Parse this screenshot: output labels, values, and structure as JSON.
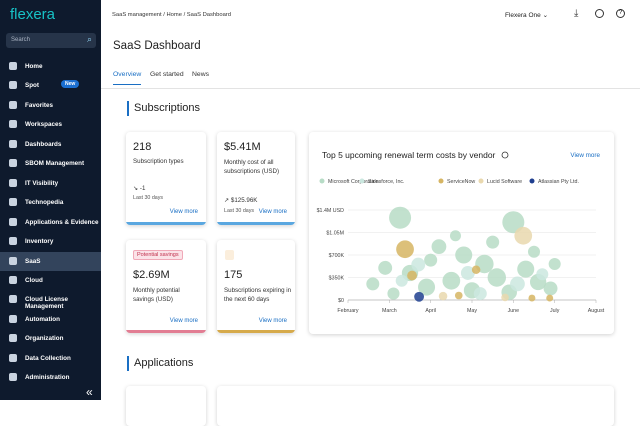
{
  "sidebar": {
    "logo": "flexera",
    "search": "Search",
    "badge": "New",
    "collapse": "«",
    "items": [
      "Home",
      "Spot",
      "Favorites",
      "Workspaces",
      "Dashboards",
      "SBOM Management",
      "IT Visibility",
      "Technopedia",
      "Applications & Evidence",
      "Inventory",
      "SaaS",
      "Cloud",
      "Cloud License Management",
      "Automation",
      "Organization",
      "Data Collection",
      "Administration"
    ],
    "selected": "SaaS"
  },
  "topbar": {
    "breadcrumb": [
      "SaaS management",
      "Home",
      "SaaS Dashboard"
    ],
    "org": "Flexera One"
  },
  "header": {
    "title": "SaaS Dashboard",
    "tabs": [
      "Overview",
      "Get started",
      "News"
    ],
    "active_tab": "Overview"
  },
  "sections": [
    "Subscriptions",
    "Applications"
  ],
  "cards": [
    {
      "value": "218",
      "label": "Subscription types",
      "change": "-1",
      "period": "Last 30 days",
      "link": "View more",
      "color": "#5aa7e0"
    },
    {
      "value": "$5.41M",
      "label": "Monthly cost of all subscriptions (USD)",
      "change": "$125.96K",
      "period": "Last 30 days",
      "link": "View more",
      "color": "#5aa7e0"
    },
    {
      "badge": "Potential savings",
      "value": "$2.69M",
      "label": "Monthly potential savings (USD)",
      "link": "View more",
      "color": "#e27d93"
    },
    {
      "value": "175",
      "label": "Subscriptions expiring in the next 60 days",
      "link": "View more",
      "color": "#d6aa4b"
    }
  ],
  "chart": {
    "type": "bubble",
    "title": "Top 5 upcoming renewal term costs by vendor",
    "link": "View more",
    "xlim": [
      0,
      6
    ],
    "xticks": [
      {
        "value": 0,
        "label": "February"
      },
      {
        "value": 1,
        "label": "March"
      },
      {
        "value": 2,
        "label": "April"
      },
      {
        "value": 3,
        "label": "May"
      },
      {
        "value": 4,
        "label": "June"
      },
      {
        "value": 5,
        "label": "July"
      },
      {
        "value": 6,
        "label": "August"
      }
    ],
    "ylim": [
      0,
      1400000
    ],
    "yticks": [
      {
        "value": 0,
        "label": "$0"
      },
      {
        "value": 350000,
        "label": "$350K"
      },
      {
        "value": 700000,
        "label": "$700K"
      },
      {
        "value": 1050000,
        "label": "$1.05M"
      },
      {
        "value": 1400000,
        "label": "$1.4M USD"
      }
    ],
    "grid": true,
    "series": [
      {
        "name": "Microsoft Corporation",
        "color": "#b7dcc6",
        "x": [
          1.26,
          4.0,
          2.2,
          2.8,
          3.3,
          1.5,
          2.5,
          3.6,
          4.3,
          4.6,
          0.9,
          0.6,
          1.9,
          3.0,
          3.9,
          4.9,
          5.0,
          2.0,
          1.1,
          3.5,
          4.5,
          2.6
        ],
        "values": [
          1280000,
          1210000,
          830000,
          700000,
          560000,
          420000,
          300000,
          350000,
          480000,
          280000,
          500000,
          250000,
          200000,
          150000,
          120000,
          180000,
          560000,
          620000,
          100000,
          900000,
          750000,
          1000000
        ],
        "sizes": [
          100,
          100,
          45,
          60,
          70,
          55,
          65,
          70,
          60,
          55,
          40,
          35,
          60,
          55,
          50,
          40,
          30,
          35,
          30,
          35,
          30,
          25
        ]
      },
      {
        "name": "Salesforce, Inc.",
        "color": "#cbe7df",
        "x": [
          1.7,
          2.9,
          4.1,
          1.3,
          3.2,
          4.7
        ],
        "values": [
          550000,
          420000,
          250000,
          300000,
          100000,
          400000
        ],
        "sizes": [
          40,
          40,
          45,
          30,
          35,
          30
        ]
      },
      {
        "name": "ServiceNow",
        "color": "#d6b563",
        "x": [
          1.38,
          1.55,
          2.68,
          4.45,
          4.88,
          3.1
        ],
        "values": [
          790000,
          380000,
          70000,
          30000,
          30000,
          470000
        ],
        "sizes": [
          65,
          20,
          12,
          10,
          10,
          15
        ]
      },
      {
        "name": "Lucid Software",
        "color": "#e9d8ae",
        "x": [
          4.24,
          2.3,
          3.8
        ],
        "values": [
          1000000,
          60000,
          40000
        ],
        "sizes": [
          65,
          15,
          12
        ]
      },
      {
        "name": "Atlassian Pty Ltd.",
        "color": "#1f3f8f",
        "x": [
          1.72
        ],
        "values": [
          50000
        ],
        "sizes": [
          20
        ]
      }
    ]
  }
}
